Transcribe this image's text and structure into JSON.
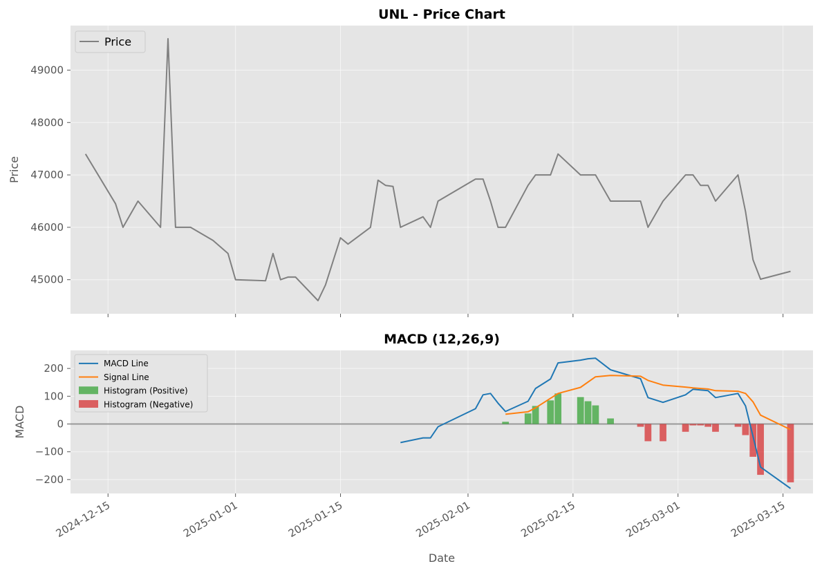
{
  "chart_data": [
    {
      "type": "line",
      "title": "UNL - Price Chart",
      "xlabel": "",
      "ylabel": "Price",
      "xlim": [
        "2024-12-10",
        "2025-03-19"
      ],
      "ylim": [
        44350,
        49850
      ],
      "yticks": [
        45000,
        46000,
        47000,
        48000,
        49000
      ],
      "grid": true,
      "legend": {
        "placement": "top-left"
      },
      "series": [
        {
          "name": "Price",
          "color": "#808080",
          "x": [
            "2024-12-12",
            "2024-12-16",
            "2024-12-17",
            "2024-12-19",
            "2024-12-22",
            "2024-12-23",
            "2024-12-24",
            "2024-12-26",
            "2024-12-29",
            "2024-12-31",
            "2025-01-01",
            "2025-01-05",
            "2025-01-06",
            "2025-01-07",
            "2025-01-08",
            "2025-01-09",
            "2025-01-12",
            "2025-01-13",
            "2025-01-15",
            "2025-01-16",
            "2025-01-19",
            "2025-01-20",
            "2025-01-21",
            "2025-01-22",
            "2025-01-23",
            "2025-01-26",
            "2025-01-27",
            "2025-01-28",
            "2025-02-02",
            "2025-02-03",
            "2025-02-04",
            "2025-02-05",
            "2025-02-06",
            "2025-02-09",
            "2025-02-10",
            "2025-02-12",
            "2025-02-13",
            "2025-02-16",
            "2025-02-18",
            "2025-02-20",
            "2025-02-24",
            "2025-02-25",
            "2025-02-27",
            "2025-03-02",
            "2025-03-03",
            "2025-03-04",
            "2025-03-05",
            "2025-03-06",
            "2025-03-09",
            "2025-03-10",
            "2025-03-11",
            "2025-03-12",
            "2025-03-16"
          ],
          "y": [
            47400,
            46450,
            46000,
            46500,
            46000,
            49600,
            46000,
            46000,
            45750,
            45500,
            45000,
            44980,
            45500,
            45000,
            45050,
            45050,
            44600,
            44900,
            45800,
            45680,
            46000,
            46900,
            46800,
            46780,
            46000,
            46200,
            46000,
            46500,
            46920,
            46920,
            46500,
            46000,
            46000,
            46800,
            47000,
            47000,
            47400,
            47000,
            47000,
            46500,
            46500,
            46000,
            46500,
            47000,
            47000,
            46800,
            46800,
            46500,
            47000,
            46300,
            45380,
            45010,
            45160
          ]
        }
      ]
    },
    {
      "type": "line",
      "title": "MACD (12,26,9)",
      "xlabel": "Date",
      "ylabel": "MACD",
      "xlim": [
        "2024-12-10",
        "2025-03-19"
      ],
      "ylim": [
        -250,
        265
      ],
      "yticks": [
        -200,
        -100,
        0,
        100,
        200
      ],
      "xticks": [
        "2024-12-15",
        "2025-01-01",
        "2025-01-15",
        "2025-02-01",
        "2025-02-15",
        "2025-03-01",
        "2025-03-15"
      ],
      "zero_line": true,
      "grid": true,
      "legend": {
        "placement": "top-left"
      },
      "series": [
        {
          "name": "MACD Line",
          "color": "#1f77b4",
          "x": [
            "2025-01-23",
            "2025-01-26",
            "2025-01-27",
            "2025-01-28",
            "2025-02-02",
            "2025-02-03",
            "2025-02-04",
            "2025-02-05",
            "2025-02-06",
            "2025-02-09",
            "2025-02-10",
            "2025-02-12",
            "2025-02-13",
            "2025-02-16",
            "2025-02-17",
            "2025-02-18",
            "2025-02-20",
            "2025-02-24",
            "2025-02-25",
            "2025-02-27",
            "2025-03-02",
            "2025-03-03",
            "2025-03-05",
            "2025-03-06",
            "2025-03-09",
            "2025-03-10",
            "2025-03-12",
            "2025-03-16"
          ],
          "y": [
            -67,
            -50,
            -50,
            -10,
            55,
            105,
            110,
            75,
            45,
            82,
            128,
            162,
            220,
            230,
            235,
            237,
            195,
            163,
            95,
            78,
            105,
            125,
            120,
            95,
            110,
            65,
            -155,
            -232
          ]
        },
        {
          "name": "Signal Line",
          "color": "#ff7f0e",
          "x": [
            "2025-02-06",
            "2025-02-09",
            "2025-02-10",
            "2025-02-13",
            "2025-02-16",
            "2025-02-18",
            "2025-02-20",
            "2025-02-24",
            "2025-02-25",
            "2025-02-27",
            "2025-03-02",
            "2025-03-03",
            "2025-03-05",
            "2025-03-06",
            "2025-03-09",
            "2025-03-10",
            "2025-03-11",
            "2025-03-12",
            "2025-03-16"
          ],
          "y": [
            35,
            44,
            58,
            110,
            132,
            170,
            175,
            172,
            157,
            140,
            133,
            130,
            126,
            120,
            118,
            110,
            80,
            32,
            -20
          ]
        },
        {
          "name": "Histogram (Positive)",
          "color": "#2ca02c",
          "kind": "bar",
          "x": [
            "2025-02-06",
            "2025-02-09",
            "2025-02-10",
            "2025-02-12",
            "2025-02-13",
            "2025-02-16",
            "2025-02-17",
            "2025-02-18",
            "2025-02-20"
          ],
          "y": [
            8,
            38,
            65,
            85,
            110,
            97,
            82,
            67,
            20
          ]
        },
        {
          "name": "Histogram (Negative)",
          "color": "#d62728",
          "kind": "bar",
          "x": [
            "2025-02-24",
            "2025-02-25",
            "2025-02-27",
            "2025-03-02",
            "2025-03-03",
            "2025-03-04",
            "2025-03-05",
            "2025-03-06",
            "2025-03-09",
            "2025-03-10",
            "2025-03-11",
            "2025-03-12",
            "2025-03-16"
          ],
          "y": [
            -10,
            -62,
            -62,
            -28,
            -5,
            -5,
            -10,
            -28,
            -10,
            -40,
            -118,
            -183,
            -210
          ]
        }
      ]
    }
  ]
}
